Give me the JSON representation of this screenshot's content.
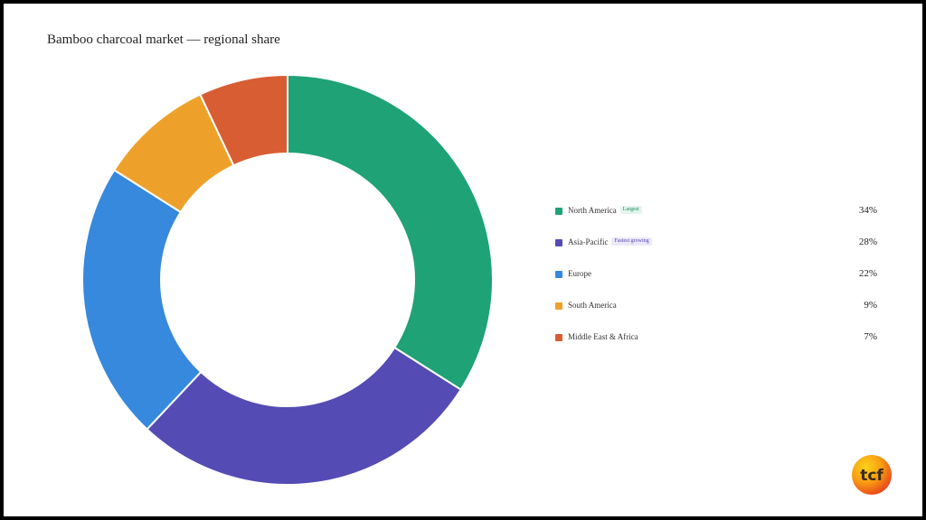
{
  "chart_data": {
    "type": "pie",
    "variant": "donut",
    "title": "Bamboo charcoal market — regional share",
    "unit": "%",
    "slices": [
      {
        "label": "North America",
        "value": 34,
        "display": "34%",
        "color": "#1ea276",
        "badge": "Largest"
      },
      {
        "label": "Asia-Pacific",
        "value": 28,
        "display": "28%",
        "color": "#544bb4",
        "badge": "Fastest growing"
      },
      {
        "label": "Europe",
        "value": 22,
        "display": "22%",
        "color": "#3689dc",
        "badge": ""
      },
      {
        "label": "South America",
        "value": 9,
        "display": "9%",
        "color": "#eea12a",
        "badge": ""
      },
      {
        "label": "Middle East & Africa",
        "value": 7,
        "display": "7%",
        "color": "#d85d33",
        "badge": ""
      }
    ],
    "legend_position": "right"
  },
  "logo": {
    "text": "tcf",
    "icon": "tcf-logo-icon"
  }
}
